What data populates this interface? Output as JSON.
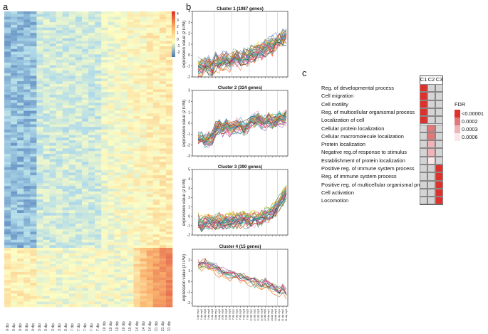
{
  "panels": {
    "a": "a",
    "b": "b",
    "c": "c"
  },
  "heatmap": {
    "colorbar_ticks": [
      "4",
      "3",
      "2",
      "1",
      "0",
      "-1",
      "-2"
    ],
    "colors": {
      "high": "#d73027",
      "mid": "#ffffbf",
      "low": "#4575b4"
    },
    "x_labels": [
      "0 dip",
      "0 dip",
      "0 dip",
      "0 dip",
      "0 dip",
      "3 dip",
      "3 dip",
      "3 dip",
      "3 dip",
      "3 dip",
      "7 dip",
      "7 dip",
      "7 dip",
      "7 dip",
      "7 dip",
      "10 dip",
      "10 dip",
      "10 dip",
      "10 dip",
      "10 dip",
      "14 dip",
      "14 dip",
      "14 dip",
      "21 dip",
      "21 dip",
      "21 dip"
    ]
  },
  "chart_data": [
    {
      "type": "line",
      "title": "Cluster 1 (1087 genes)",
      "ylabel": "expression value (zTPM)",
      "ylim": [
        -2,
        4
      ],
      "yticks": [
        "-2",
        "-1",
        "0",
        "1",
        "2",
        "3",
        "4"
      ],
      "mean_series": [
        -1.1,
        -1.2,
        -1.0,
        -0.9,
        -1.1,
        -0.6,
        -0.7,
        -0.5,
        -0.4,
        -0.6,
        -0.3,
        -0.2,
        -0.4,
        0.0,
        -0.1,
        0.2,
        0.1,
        0.4,
        0.3,
        0.6,
        0.8,
        0.9,
        1.1,
        1.4,
        1.6,
        1.8
      ],
      "spread": 1.0
    },
    {
      "type": "line",
      "title": "Cluster 2 (324 genes)",
      "ylabel": "expression value (zTPM)",
      "ylim": [
        -3,
        3
      ],
      "yticks": [
        "-3",
        "-2",
        "-1",
        "0",
        "1",
        "2",
        "3"
      ],
      "mean_series": [
        -1.4,
        -1.5,
        -1.6,
        -1.5,
        -1.4,
        -0.5,
        -0.4,
        -0.6,
        -0.3,
        -0.5,
        -0.4,
        -0.3,
        -0.2,
        -0.5,
        -0.3,
        0.1,
        0.2,
        0.3,
        0.1,
        0.0,
        0.3,
        0.1,
        0.2,
        0.4,
        0.3,
        0.6
      ],
      "spread": 0.8
    },
    {
      "type": "line",
      "title": "Cluster 3 (390 genes)",
      "ylabel": "expression value (zTPM)",
      "ylim": [
        -2,
        5
      ],
      "yticks": [
        "-2",
        "-1",
        "0",
        "1",
        "2",
        "3",
        "4",
        "5"
      ],
      "mean_series": [
        -0.6,
        -0.8,
        -0.7,
        -0.6,
        -0.7,
        -0.6,
        -0.5,
        -0.6,
        -0.5,
        -0.5,
        -0.4,
        -0.5,
        -0.4,
        -0.3,
        -0.4,
        -0.3,
        -0.2,
        -0.3,
        -0.2,
        0.0,
        0.3,
        0.5,
        0.8,
        1.5,
        2.0,
        2.6
      ],
      "spread": 1.0
    },
    {
      "type": "line",
      "title": "Cluster 4 (15 genes)",
      "ylabel": "expression value (zTPM)",
      "ylim": [
        -2.3,
        3
      ],
      "yticks": [
        "-2",
        "-1",
        "0",
        "1",
        "2"
      ],
      "mean_series": [
        1.6,
        1.5,
        1.7,
        1.4,
        1.3,
        1.2,
        0.9,
        0.8,
        0.7,
        0.6,
        0.5,
        0.4,
        0.3,
        0.3,
        0.2,
        0.0,
        -0.1,
        -0.2,
        -0.3,
        -0.2,
        -0.4,
        -0.6,
        -0.7,
        -1.0,
        -0.7,
        -1.2
      ],
      "spread": 0.6,
      "x_tick_labels": [
        "0 dip rep1",
        "0 dip rep2",
        "0 dip rep3",
        "0 dip rep4",
        "0 dip rep5",
        "3 dip rep1",
        "3 dip rep2",
        "3 dip rep3",
        "3 dip rep4",
        "3 dip rep5",
        "7 dip rep1",
        "7 dip rep2",
        "7 dip rep3",
        "7 dip rep4",
        "7 dip rep5",
        "10 dip rep1",
        "10 dip rep2",
        "10 dip rep3",
        "10 dip rep4",
        "10 dip rep5",
        "14 dip rep1",
        "14 dip rep2",
        "14 dip rep3",
        "21 dip rep1",
        "21 dip rep2",
        "21 dip rep3"
      ]
    },
    {
      "type": "heatmap",
      "columns": [
        "C1",
        "C2",
        "C3"
      ],
      "rows": [
        "Reg. of developmental process",
        "Cell migration",
        "Cell motility",
        "Reg. of multicellular organismal process",
        "Localization of cell",
        "Cellular protein localization",
        "Cellular macromolecule localization",
        "Protein localization",
        "Negative reg.of response to stimulus",
        "Establishment of protein localization",
        "Positive reg. of immune system process",
        "Reg. of immune system process",
        "Positive reg. of multicellular organismal process",
        "Cell activation",
        "Locomotion"
      ],
      "cells": [
        [
          0,
          -1,
          -1
        ],
        [
          0,
          -1,
          -1
        ],
        [
          0,
          -1,
          -1
        ],
        [
          0,
          -1,
          -1
        ],
        [
          0,
          -1,
          -1
        ],
        [
          -1,
          1,
          -1
        ],
        [
          -1,
          1,
          -1
        ],
        [
          -1,
          2,
          -1
        ],
        [
          -1,
          2,
          -1
        ],
        [
          -1,
          3,
          -1
        ],
        [
          -1,
          -1,
          0
        ],
        [
          -1,
          -1,
          0
        ],
        [
          -1,
          -1,
          0
        ],
        [
          -1,
          -1,
          0
        ],
        [
          -1,
          -1,
          0
        ]
      ],
      "legend_title": "FDR",
      "legend": [
        {
          "label": "<0.00001",
          "color": "#e0302a"
        },
        {
          "label": "0.0002",
          "color": "#e0787a"
        },
        {
          "label": "0.0003",
          "color": "#f0b4b8"
        },
        {
          "label": "0.0006",
          "color": "#fbe6e8"
        }
      ],
      "na_color": "#d4d4d4"
    }
  ]
}
